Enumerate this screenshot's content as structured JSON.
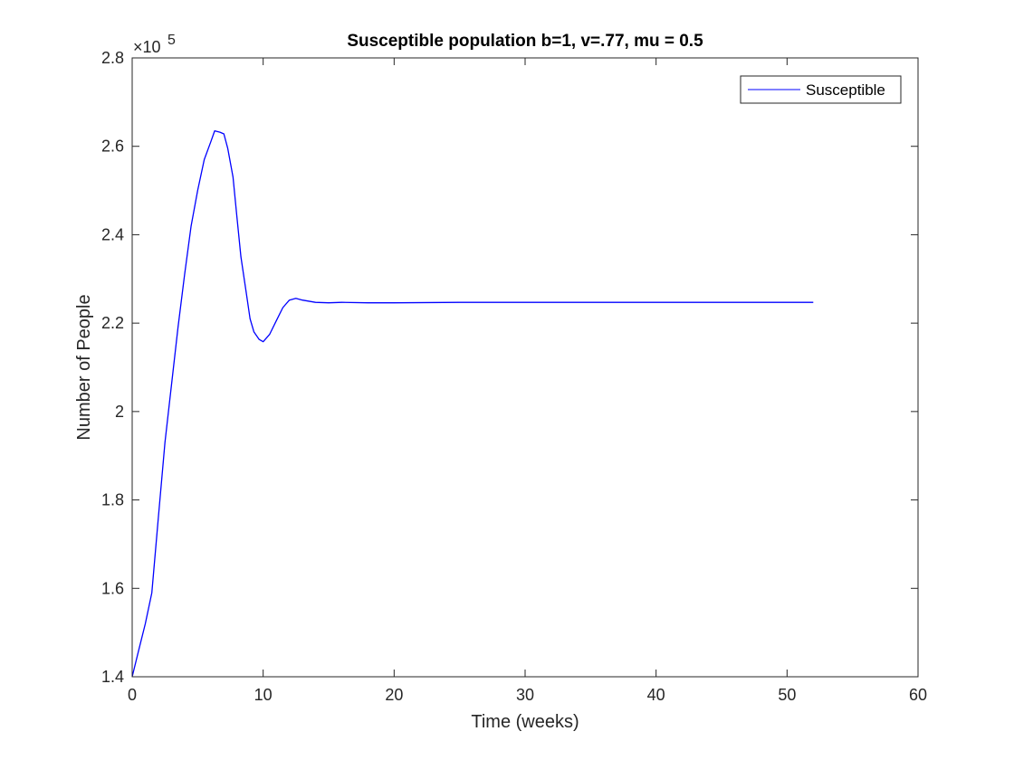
{
  "chart_data": {
    "type": "line",
    "title": "Susceptible population b=1, v=.77, mu = 0.5",
    "xlabel": "Time (weeks)",
    "ylabel": "Number of People",
    "y_multiplier_label": "×10",
    "y_multiplier_exponent": "5",
    "xlim": [
      0,
      60
    ],
    "ylim": [
      1.4,
      2.8
    ],
    "x_ticks": [
      0,
      10,
      20,
      30,
      40,
      50,
      60
    ],
    "x_tick_labels": [
      "0",
      "10",
      "20",
      "30",
      "40",
      "50",
      "60"
    ],
    "y_ticks": [
      1.4,
      1.6,
      1.8,
      2.0,
      2.2,
      2.4,
      2.6,
      2.8
    ],
    "y_tick_labels": [
      "1.4",
      "1.6",
      "1.8",
      "2",
      "2.2",
      "2.4",
      "2.6",
      "2.8"
    ],
    "grid": false,
    "legend_position": "top-right",
    "line_color": "#0000ff",
    "series": [
      {
        "name": "Susceptible",
        "x": [
          0,
          0.5,
          1,
          1.5,
          2,
          2.5,
          3,
          3.5,
          4,
          4.5,
          5,
          5.5,
          6,
          6.3,
          6.7,
          7,
          7.3,
          7.7,
          8,
          8.3,
          8.7,
          9,
          9.3,
          9.7,
          10,
          10.5,
          11,
          11.5,
          12,
          12.5,
          13,
          14,
          15,
          16,
          18,
          20,
          25,
          30,
          35,
          40,
          45,
          52
        ],
        "y": [
          1.4,
          1.46,
          1.52,
          1.59,
          1.76,
          1.93,
          2.06,
          2.19,
          2.31,
          2.42,
          2.5,
          2.57,
          2.61,
          2.635,
          2.632,
          2.628,
          2.595,
          2.53,
          2.44,
          2.35,
          2.27,
          2.21,
          2.18,
          2.163,
          2.158,
          2.175,
          2.205,
          2.235,
          2.252,
          2.256,
          2.252,
          2.247,
          2.246,
          2.247,
          2.246,
          2.246,
          2.247,
          2.247,
          2.247,
          2.247,
          2.247,
          2.247
        ]
      }
    ]
  }
}
